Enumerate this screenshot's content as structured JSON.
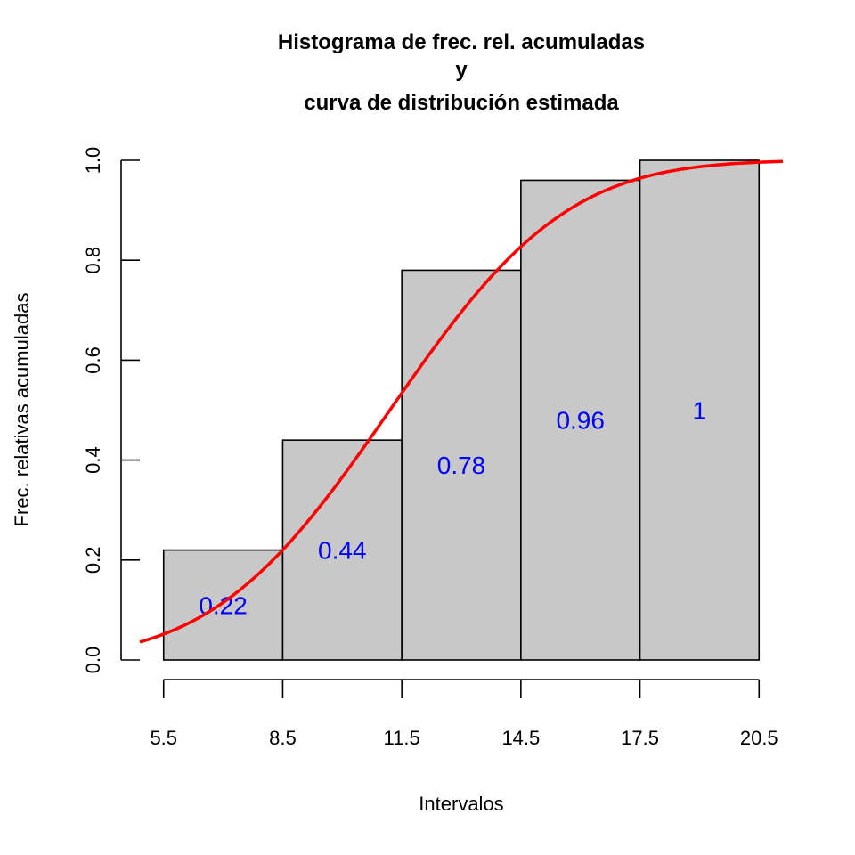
{
  "chart_data": {
    "type": "bar",
    "title_lines": [
      "Histograma de frec. rel. acumuladas",
      "y",
      "curva de distribución estimada"
    ],
    "xlabel": "Intervalos",
    "ylabel": "Frec. relativas acumuladas",
    "breaks": [
      5.5,
      8.5,
      11.5,
      14.5,
      17.5,
      20.5
    ],
    "x_tick_labels": [
      "5.5",
      "8.5",
      "11.5",
      "14.5",
      "17.5",
      "20.5"
    ],
    "y_ticks": [
      0.0,
      0.2,
      0.4,
      0.6,
      0.8,
      1.0
    ],
    "y_tick_labels": [
      "0.0",
      "0.2",
      "0.4",
      "0.6",
      "0.8",
      "1.0"
    ],
    "values": [
      0.22,
      0.44,
      0.78,
      0.96,
      1.0
    ],
    "bar_labels": [
      "0.22",
      "0.44",
      "0.78",
      "0.96",
      "1"
    ],
    "xlim": [
      4.9,
      21.1
    ],
    "ylim": [
      0,
      1
    ],
    "grid": false,
    "legend": "none",
    "bar_fill": "#c8c8c8",
    "bar_label_color": "#0000ff",
    "curve": {
      "type": "normal_cdf",
      "mean": 11.2,
      "sd": 3.5,
      "color": "#ff0000"
    }
  }
}
